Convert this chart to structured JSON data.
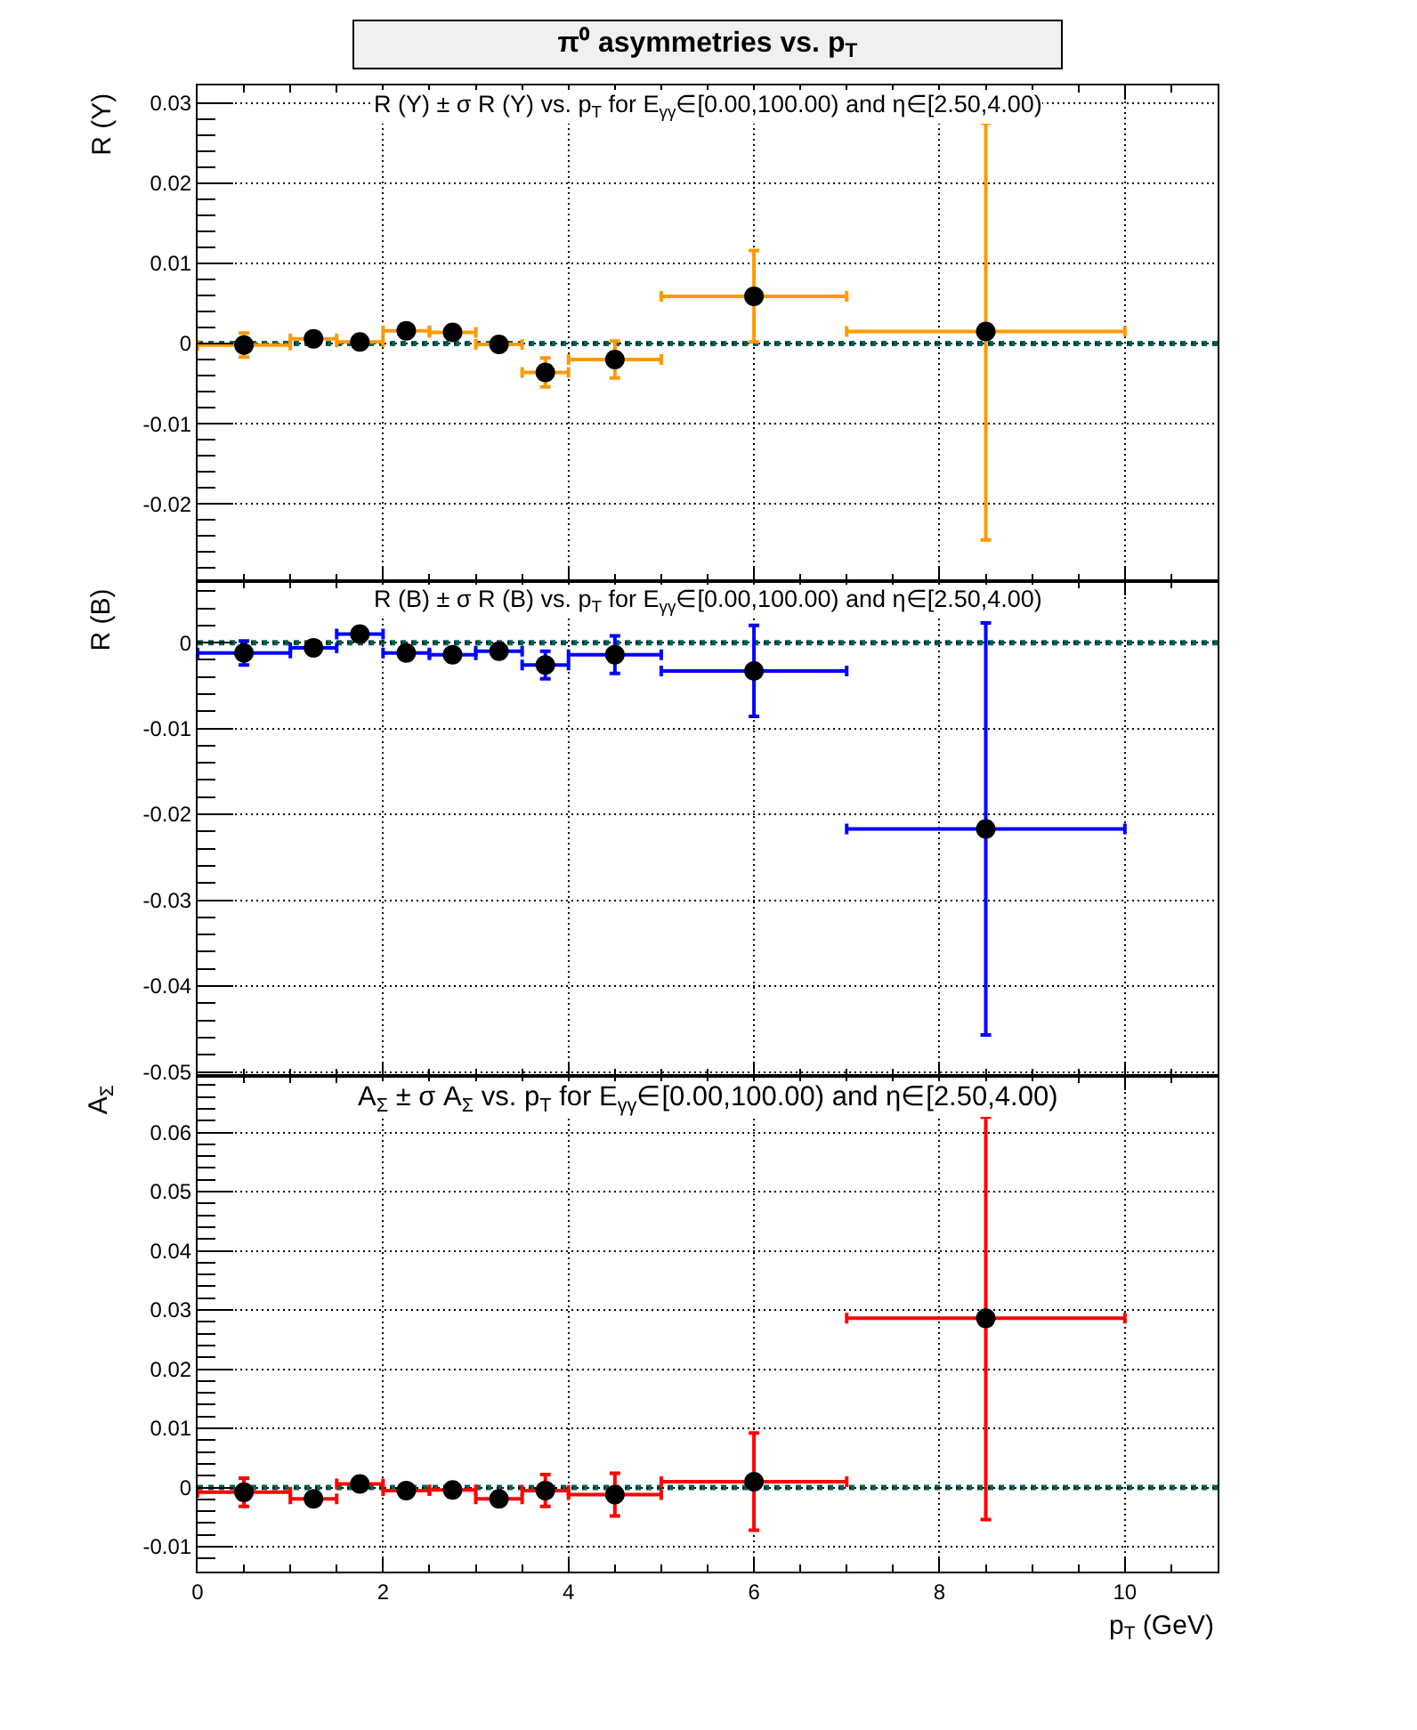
{
  "chart_data": [
    {
      "type": "scatter",
      "title": "π⁰ asymmetries vs. p$_{T}$",
      "subtitle": "R (Y) ± σ R (Y) vs. p$_{T}$ for E$_{γγ}$∈[0.00,100.00) and η∈[2.50,4.00)",
      "ylabel": "R (Y)",
      "x": [
        0.5,
        1.25,
        1.75,
        2.25,
        2.75,
        3.25,
        3.75,
        4.5,
        6,
        8.5
      ],
      "series": [
        {
          "color": "#000000",
          "values": [
            -0.0002,
            0.0006,
            0.0002,
            0.0016,
            0.0014,
            -0.0001,
            -0.0036,
            -0.002,
            0.0059,
            0.0015
          ],
          "errors": [
            0.0015,
            null,
            null,
            null,
            null,
            null,
            0.0018,
            0.0023,
            0.0057,
            0.026
          ],
          "xerrors": [
            0.5,
            0.25,
            0.25,
            0.25,
            0.25,
            0.25,
            0.25,
            0.5,
            1,
            1.5
          ]
        }
      ],
      "xlim": [
        0,
        11
      ],
      "xticks": [
        0,
        2,
        4,
        6,
        8,
        10
      ],
      "ylim": [
        -0.0296,
        0.0322
      ],
      "yticks": [
        -0.02,
        -0.01,
        0,
        0.01,
        0.02,
        0.03
      ],
      "tick_labels": "y",
      "grid": true,
      "marker": "circle",
      "ref_lines": [
        {
          "axis": "y",
          "value": 0,
          "color": "#006158",
          "line_style": "dotted"
        }
      ]
    },
    {
      "type": "scatter",
      "subtitle": "R (B) ± σ R (B) vs. p$_{T}$ for E$_{γγ}$∈[0.00,100.00) and η∈[2.50,4.00)",
      "ylabel": "R (B)",
      "x": [
        0.5,
        1.25,
        1.75,
        2.25,
        2.75,
        3.25,
        3.75,
        4.5,
        6,
        8.5
      ],
      "series": [
        {
          "color": "#000000",
          "values": [
            -0.0012,
            -0.0006,
            0.001,
            -0.0012,
            -0.0014,
            -0.001,
            -0.0026,
            -0.0014,
            -0.0033,
            -0.0217
          ],
          "errors": [
            0.0014,
            null,
            null,
            null,
            null,
            null,
            0.0016,
            0.0022,
            0.0053,
            0.024
          ],
          "xerrors": [
            0.5,
            0.25,
            0.25,
            0.25,
            0.25,
            0.25,
            0.25,
            0.5,
            1,
            1.5
          ]
        }
      ],
      "xlim": [
        0,
        11
      ],
      "xticks": [
        0,
        2,
        4,
        6,
        8,
        10
      ],
      "ylim": [
        -0.0505,
        0.0072
      ],
      "yticks": [
        -0.05,
        -0.04,
        -0.03,
        -0.02,
        -0.01,
        0
      ],
      "tick_labels": "y",
      "grid": true,
      "marker": "circle",
      "ref_lines": [
        {
          "axis": "y",
          "value": 0,
          "color": "#006158",
          "line_style": "dotted"
        }
      ]
    },
    {
      "type": "scatter",
      "subtitle": "A$_{Σ}$ ± σ A$_{Σ}$ vs. p$_{T}$ for E$_{γγ}$∈[0.00,100.00) and η∈[2.50,4.00)",
      "ylabel": "A$_{Σ}$",
      "xlabel": "p$_{T}$ (GeV)",
      "x": [
        0.5,
        1.25,
        1.75,
        2.25,
        2.75,
        3.25,
        3.75,
        4.5,
        6,
        8.5
      ],
      "series": [
        {
          "color": "#000000",
          "values": [
            -0.0008,
            -0.0019,
            0.0006,
            -0.0005,
            -0.0004,
            -0.0019,
            -0.0005,
            -0.0012,
            0.001,
            0.0286
          ],
          "errors": [
            0.0024,
            null,
            null,
            null,
            null,
            null,
            0.0027,
            0.0036,
            0.0082,
            0.034
          ],
          "xerrors": [
            0.5,
            0.25,
            0.25,
            0.25,
            0.25,
            0.25,
            0.25,
            0.5,
            1,
            1.5
          ]
        }
      ],
      "xlim": [
        0,
        11
      ],
      "xticks": [
        0,
        2,
        4,
        6,
        8,
        10
      ],
      "ylim": [
        -0.0142,
        0.0695
      ],
      "yticks": [
        -0.01,
        0,
        0.01,
        0.02,
        0.03,
        0.04,
        0.05,
        0.06
      ],
      "grid": true,
      "marker": "circle",
      "ref_lines": [
        {
          "axis": "y",
          "value": 0,
          "color": "#006158",
          "line_style": "dotted"
        }
      ]
    }
  ]
}
